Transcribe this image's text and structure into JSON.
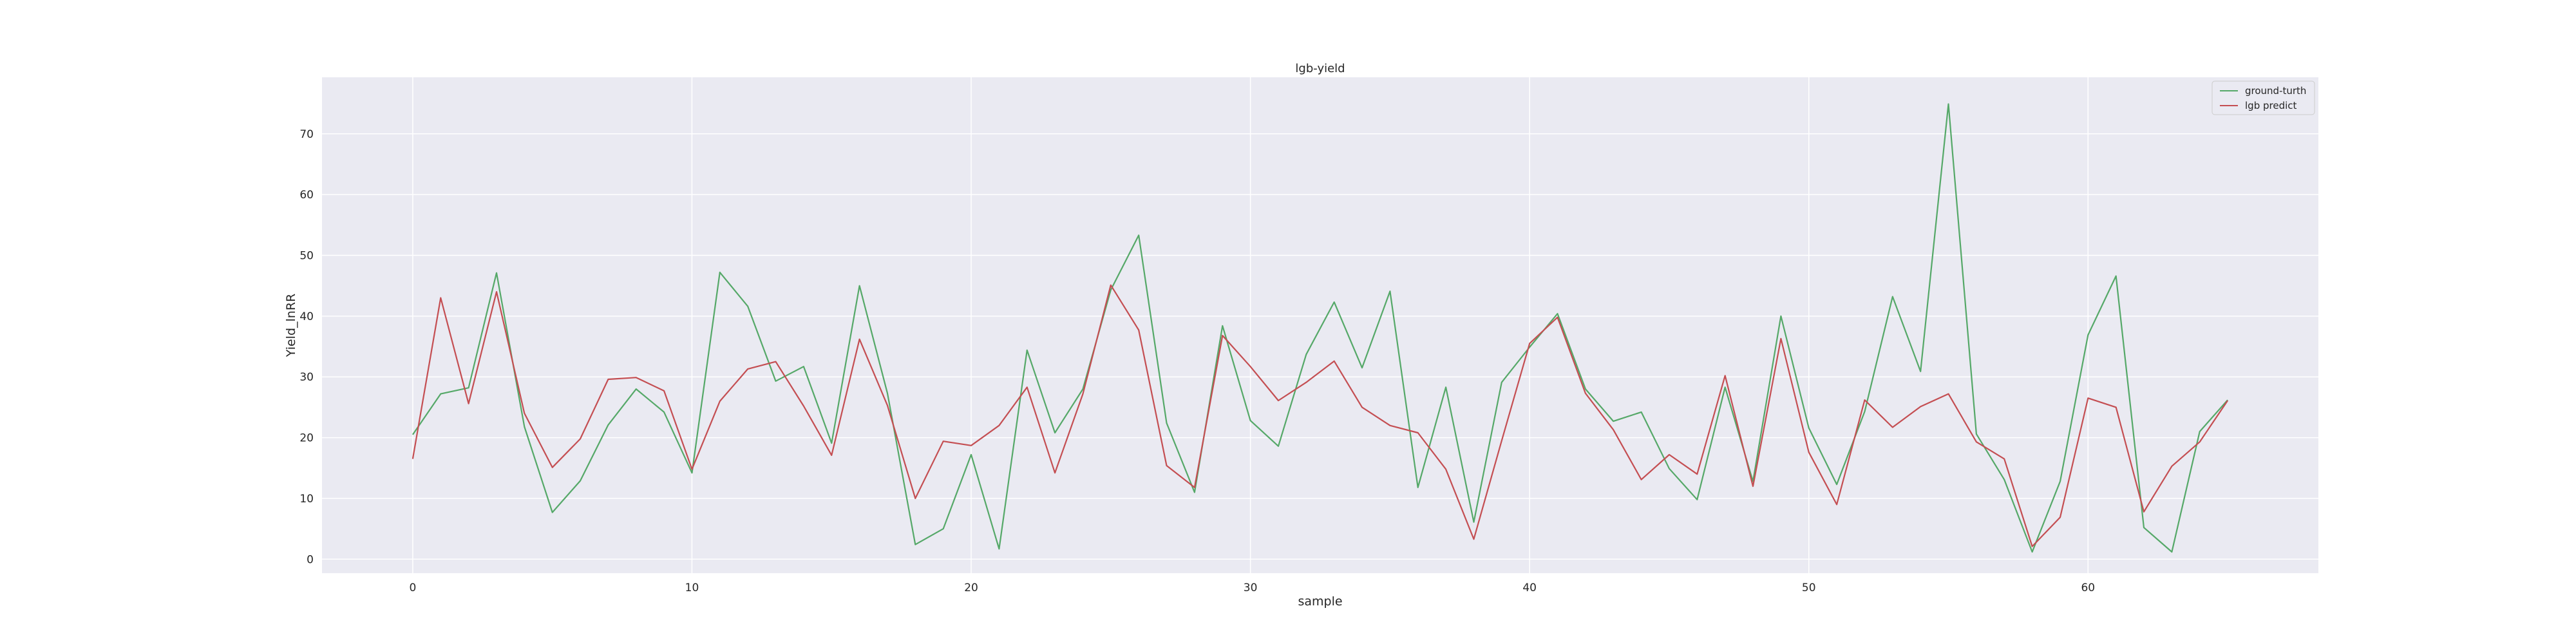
{
  "chart_data": {
    "type": "line",
    "title": "lgb-yield",
    "xlabel": "sample",
    "ylabel": "Yield_lnRR",
    "xlim": [
      -3.25,
      68.25
    ],
    "ylim": [
      -2.3,
      79.3
    ],
    "xticks": [
      0,
      10,
      20,
      30,
      40,
      50,
      60
    ],
    "yticks": [
      0,
      10,
      20,
      30,
      40,
      50,
      60,
      70
    ],
    "grid": true,
    "legend_position": "top-right",
    "colors": {
      "background": "#eaeaf2",
      "grid": "#ffffff",
      "ground_truth": "#55a868",
      "prediction": "#c44e52"
    },
    "x": [
      0,
      1,
      2,
      3,
      4,
      5,
      6,
      7,
      8,
      9,
      10,
      11,
      12,
      13,
      14,
      15,
      16,
      17,
      18,
      19,
      20,
      21,
      22,
      23,
      24,
      25,
      26,
      27,
      28,
      29,
      30,
      31,
      32,
      33,
      34,
      35,
      36,
      37,
      38,
      39,
      40,
      41,
      42,
      43,
      44,
      45,
      46,
      47,
      48,
      49,
      50,
      51,
      52,
      53,
      54,
      55,
      56,
      57,
      58,
      59,
      60,
      61,
      62,
      63,
      64,
      65
    ],
    "series": [
      {
        "name": "ground-turth",
        "color": "#55a868",
        "values": [
          20.5,
          27.2,
          28.2,
          47.1,
          21.8,
          7.7,
          12.9,
          22.1,
          28.0,
          24.2,
          14.2,
          47.2,
          41.6,
          29.3,
          31.7,
          19.1,
          45.0,
          27.3,
          2.4,
          5.0,
          17.2,
          1.7,
          34.4,
          20.8,
          28.0,
          44.3,
          53.3,
          22.4,
          11.0,
          38.4,
          22.8,
          18.6,
          33.7,
          42.3,
          31.5,
          44.1,
          11.8,
          28.3,
          6.1,
          29.1,
          34.9,
          40.4,
          28.0,
          22.7,
          24.2,
          14.9,
          9.8,
          28.3,
          12.8,
          40.0,
          21.6,
          12.3,
          24.3,
          43.2,
          30.9,
          74.9,
          20.6,
          13.1,
          1.2,
          12.8,
          36.9,
          46.6,
          5.2,
          1.2,
          21.0,
          26.2
        ]
      },
      {
        "name": "lgb predict",
        "color": "#c44e52",
        "values": [
          16.5,
          43.0,
          25.6,
          44.0,
          24.0,
          15.1,
          19.8,
          29.6,
          29.9,
          27.7,
          14.8,
          26.0,
          31.3,
          32.5,
          25.2,
          17.1,
          36.2,
          25.3,
          10.0,
          19.4,
          18.7,
          22.0,
          28.3,
          14.2,
          27.2,
          45.1,
          37.7,
          15.4,
          11.8,
          36.8,
          31.7,
          26.1,
          29.1,
          32.6,
          25.0,
          22.0,
          20.8,
          14.8,
          3.3,
          19.5,
          35.5,
          39.8,
          27.3,
          21.3,
          13.1,
          17.2,
          14.0,
          30.2,
          12.0,
          36.3,
          17.6,
          9.0,
          26.2,
          21.7,
          25.1,
          27.2,
          19.3,
          16.5,
          2.1,
          6.9,
          26.5,
          25.0,
          7.8,
          15.3,
          19.3,
          26.1
        ]
      }
    ]
  }
}
